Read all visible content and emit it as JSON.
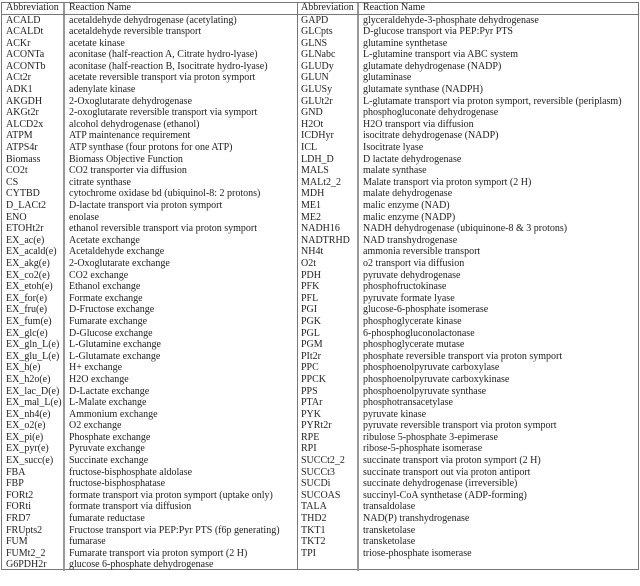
{
  "headers": {
    "abbreviation": "Abbreviation",
    "reaction_name": "Reaction Name"
  },
  "left_rows": [
    [
      "ACALD",
      "acetaldehyde dehydrogenase (acetylating)"
    ],
    [
      "ACALDt",
      "acetaldehyde reversible transport"
    ],
    [
      "ACKr",
      "acetate kinase"
    ],
    [
      "ACONTa",
      "aconitase (half-reaction A, Citrate hydro-lyase)"
    ],
    [
      "ACONTb",
      "aconitase (half-reaction B, Isocitrate hydro-lyase)"
    ],
    [
      "ACt2r",
      "acetate reversible transport via proton symport"
    ],
    [
      "ADK1",
      "adenylate kinase"
    ],
    [
      "AKGDH",
      "2-Oxoglutarate dehydrogenase"
    ],
    [
      "AKGt2r",
      "2-oxoglutarate reversible transport via symport"
    ],
    [
      "ALCD2x",
      "alcohol dehydrogenase (ethanol)"
    ],
    [
      "ATPM",
      "ATP maintenance requirement"
    ],
    [
      "ATPS4r",
      "ATP synthase (four protons for one ATP)"
    ],
    [
      "Biomass",
      "Biomass Objective Function"
    ],
    [
      "CO2t",
      "CO2 transporter via diffusion"
    ],
    [
      "CS",
      "citrate synthase"
    ],
    [
      "CYTBD",
      "cytochrome oxidase bd (ubiquinol-8: 2 protons)"
    ],
    [
      "D_LACt2",
      "D-lactate transport via proton symport"
    ],
    [
      "ENO",
      "enolase"
    ],
    [
      "ETOHt2r",
      "ethanol reversible transport via proton symport"
    ],
    [
      "EX_ac(e)",
      "Acetate exchange"
    ],
    [
      "EX_acald(e)",
      "Acetaldehyde exchange"
    ],
    [
      "EX_akg(e)",
      "2-Oxoglutarate exchange"
    ],
    [
      "EX_co2(e)",
      "CO2 exchange"
    ],
    [
      "EX_etoh(e)",
      "Ethanol exchange"
    ],
    [
      "EX_for(e)",
      "Formate exchange"
    ],
    [
      "EX_fru(e)",
      "D-Fructose exchange"
    ],
    [
      "EX_fum(e)",
      "Fumarate exchange"
    ],
    [
      "EX_glc(e)",
      "D-Glucose exchange"
    ],
    [
      "EX_gln_L(e)",
      "L-Glutamine exchange"
    ],
    [
      "EX_glu_L(e)",
      "L-Glutamate exchange"
    ],
    [
      "EX_h(e)",
      "H+ exchange"
    ],
    [
      "EX_h2o(e)",
      "H2O exchange"
    ],
    [
      "EX_lac_D(e)",
      "D-Lactate exchange"
    ],
    [
      "EX_mal_L(e)",
      "L-Malate exchange"
    ],
    [
      "EX_nh4(e)",
      "Ammonium exchange"
    ],
    [
      "EX_o2(e)",
      "O2 exchange"
    ],
    [
      "EX_pi(e)",
      "Phosphate exchange"
    ],
    [
      "EX_pyr(e)",
      "Pyruvate exchange"
    ],
    [
      "EX_succ(e)",
      "Succinate exchange"
    ],
    [
      "FBA",
      "fructose-bisphosphate aldolase"
    ],
    [
      "FBP",
      "fructose-bisphosphatase"
    ],
    [
      "FORt2",
      "formate transport via proton symport (uptake only)"
    ],
    [
      "FORti",
      "formate transport via diffusion"
    ],
    [
      "FRD7",
      "fumarate reductase"
    ],
    [
      "FRUpts2",
      "Fructose transport via PEP:Pyr PTS (f6p generating)"
    ],
    [
      "FUM",
      "fumarase"
    ],
    [
      "FUMt2_2",
      "Fumarate transport via proton symport (2 H)"
    ],
    [
      "G6PDH2r",
      "glucose 6-phosphate dehydrogenase"
    ]
  ],
  "right_rows": [
    [
      "GAPD",
      "glyceraldehyde-3-phosphate dehydrogenase"
    ],
    [
      "GLCpts",
      "D-glucose transport via PEP:Pyr PTS"
    ],
    [
      "GLNS",
      "glutamine synthetase"
    ],
    [
      "GLNabc",
      "L-glutamine transport via ABC system"
    ],
    [
      "GLUDy",
      "glutamate dehydrogenase (NADP)"
    ],
    [
      "GLUN",
      "glutaminase"
    ],
    [
      "GLUSy",
      "glutamate synthase (NADPH)"
    ],
    [
      "GLUt2r",
      "L-glutamate transport via proton symport, reversible (periplasm)"
    ],
    [
      "GND",
      "phosphogluconate dehydrogenase"
    ],
    [
      "H2Ot",
      "H2O transport via diffusion"
    ],
    [
      "ICDHyr",
      "isocitrate dehydrogenase (NADP)"
    ],
    [
      "ICL",
      "Isocitrate lyase"
    ],
    [
      "LDH_D",
      "D lactate dehydrogenase"
    ],
    [
      "MALS",
      "malate synthase"
    ],
    [
      "MALt2_2",
      "Malate transport via proton symport (2 H)"
    ],
    [
      "MDH",
      "malate dehydrogenase"
    ],
    [
      "ME1",
      "malic enzyme (NAD)"
    ],
    [
      "ME2",
      "malic enzyme (NADP)"
    ],
    [
      "NADH16",
      "NADH dehydrogenase (ubiquinone-8 & 3 protons)"
    ],
    [
      "NADTRHD",
      "NAD transhydrogenase"
    ],
    [
      "NH4t",
      "ammonia reversible transport"
    ],
    [
      "O2t",
      "o2 transport via diffusion"
    ],
    [
      "PDH",
      "pyruvate dehydrogenase"
    ],
    [
      "PFK",
      "phosphofructokinase"
    ],
    [
      "PFL",
      "pyruvate formate lyase"
    ],
    [
      "PGI",
      "glucose-6-phosphate isomerase"
    ],
    [
      "PGK",
      "phosphoglycerate kinase"
    ],
    [
      "PGL",
      "6-phosphogluconolactonase"
    ],
    [
      "PGM",
      "phosphoglycerate mutase"
    ],
    [
      "PIt2r",
      "phosphate reversible transport via proton symport"
    ],
    [
      "PPC",
      "phosphoenolpyruvate carboxylase"
    ],
    [
      "PPCK",
      "phosphoenolpyruvate carboxykinase"
    ],
    [
      "PPS",
      "phosphoenolpyruvate synthase"
    ],
    [
      "PTAr",
      "phosphotransacetylase"
    ],
    [
      "PYK",
      "pyruvate kinase"
    ],
    [
      "PYRt2r",
      "pyruvate reversible transport via proton symport"
    ],
    [
      "RPE",
      "ribulose 5-phosphate 3-epimerase"
    ],
    [
      "RPI",
      "ribose-5-phosphate isomerase"
    ],
    [
      "SUCCt2_2",
      "succinate transport via proton symport (2 H)"
    ],
    [
      "SUCCt3",
      "succinate transport out via proton antiport"
    ],
    [
      "SUCDi",
      "succinate dehydrogenase (irreversible)"
    ],
    [
      "SUCOAS",
      "succinyl-CoA synthetase (ADP-forming)"
    ],
    [
      "TALA",
      "transaldolase"
    ],
    [
      "THD2",
      "NAD(P) transhydrogenase"
    ],
    [
      "TKT1",
      "transketolase"
    ],
    [
      "TKT2",
      "transketolase"
    ],
    [
      "TPI",
      "triose-phosphate isomerase"
    ]
  ]
}
